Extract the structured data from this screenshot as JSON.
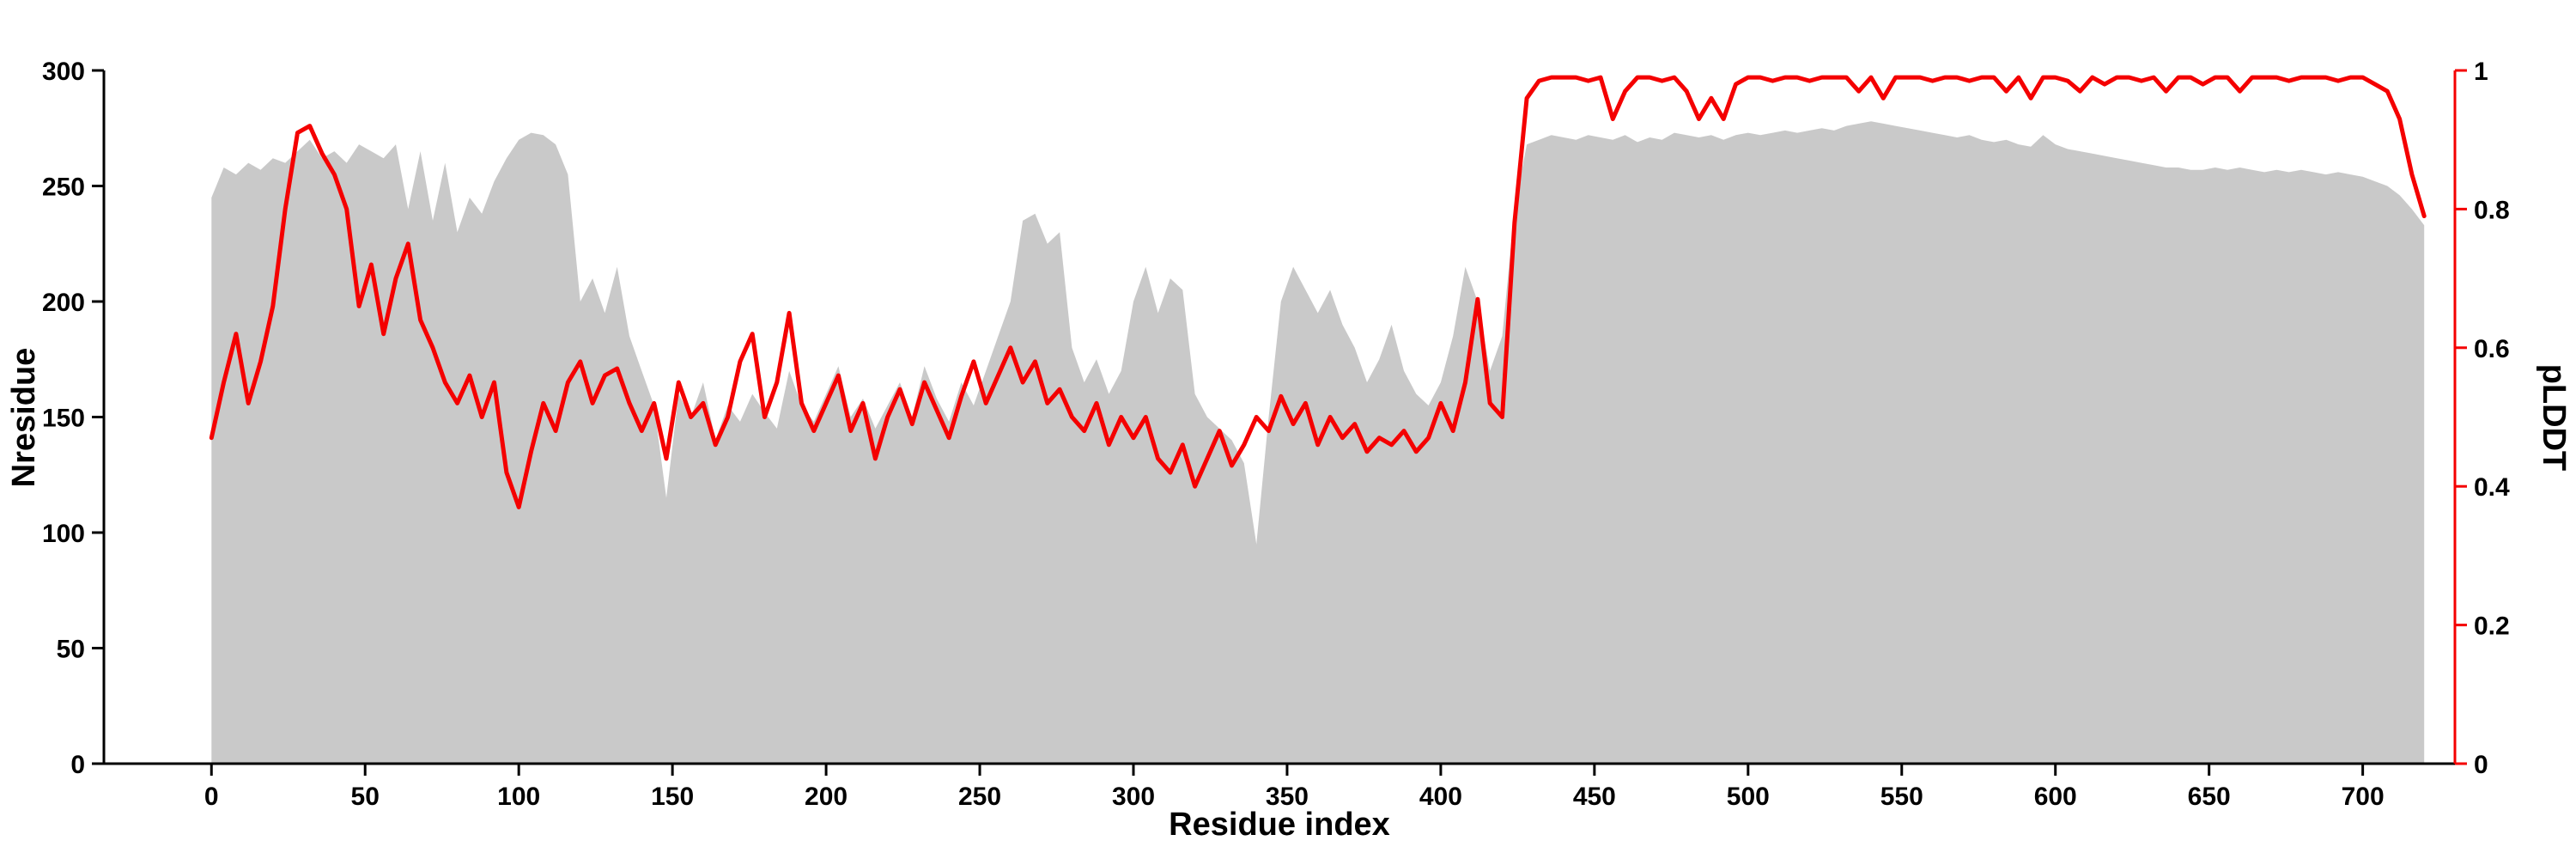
{
  "figure": {
    "background": "#ffffff"
  },
  "chart_data": {
    "type": "area+line",
    "title": "",
    "xlabel": "Residue index",
    "ylabel_left": "Nresidue",
    "ylabel_right": "pLDDT",
    "x_domain": [
      -35,
      730
    ],
    "y_left_domain": [
      0,
      300
    ],
    "y_right_domain": [
      0,
      1
    ],
    "x_ticks": [
      0,
      50,
      100,
      150,
      200,
      250,
      300,
      350,
      400,
      450,
      500,
      550,
      600,
      650,
      700
    ],
    "y_left_ticks": [
      0,
      50,
      100,
      150,
      200,
      250,
      300
    ],
    "y_right_ticks": [
      0,
      0.2,
      0.4,
      0.6,
      0.8,
      1
    ],
    "y_right_tick_labels": [
      "0",
      "0.2",
      "0.4",
      "0.6",
      "0.8",
      "1"
    ],
    "legend": "none",
    "grid": false,
    "colors": {
      "area": "#c9c9c9",
      "line": "#f40000",
      "axis": "#000000"
    },
    "x": [
      0,
      4,
      8,
      12,
      16,
      20,
      24,
      28,
      32,
      36,
      40,
      44,
      48,
      52,
      56,
      60,
      64,
      68,
      72,
      76,
      80,
      84,
      88,
      92,
      96,
      100,
      104,
      108,
      112,
      116,
      120,
      124,
      128,
      132,
      136,
      140,
      144,
      148,
      152,
      156,
      160,
      164,
      168,
      172,
      176,
      180,
      184,
      188,
      192,
      196,
      200,
      204,
      208,
      212,
      216,
      220,
      224,
      228,
      232,
      236,
      240,
      244,
      248,
      252,
      256,
      260,
      264,
      268,
      272,
      276,
      280,
      284,
      288,
      292,
      296,
      300,
      304,
      308,
      312,
      316,
      320,
      324,
      328,
      332,
      336,
      340,
      344,
      348,
      352,
      356,
      360,
      364,
      368,
      372,
      376,
      380,
      384,
      388,
      392,
      396,
      400,
      404,
      408,
      412,
      416,
      420,
      424,
      428,
      432,
      436,
      440,
      444,
      448,
      452,
      456,
      460,
      464,
      468,
      472,
      476,
      480,
      484,
      488,
      492,
      496,
      500,
      504,
      508,
      512,
      516,
      520,
      524,
      528,
      532,
      536,
      540,
      544,
      548,
      552,
      556,
      560,
      564,
      568,
      572,
      576,
      580,
      584,
      588,
      592,
      596,
      600,
      604,
      608,
      612,
      616,
      620,
      624,
      628,
      632,
      636,
      640,
      644,
      648,
      652,
      656,
      660,
      664,
      668,
      672,
      676,
      680,
      684,
      688,
      692,
      696,
      700,
      704,
      708,
      712,
      716,
      720
    ],
    "series": [
      {
        "name": "Nresidue",
        "axis": "left",
        "style": "area",
        "values": [
          245,
          258,
          255,
          260,
          257,
          262,
          260,
          265,
          270,
          262,
          265,
          260,
          268,
          265,
          262,
          268,
          240,
          265,
          235,
          260,
          230,
          245,
          238,
          252,
          262,
          270,
          273,
          272,
          268,
          255,
          200,
          210,
          195,
          215,
          185,
          170,
          155,
          115,
          160,
          150,
          165,
          140,
          155,
          148,
          160,
          152,
          145,
          170,
          155,
          148,
          160,
          172,
          150,
          158,
          145,
          155,
          165,
          150,
          172,
          158,
          148,
          165,
          155,
          170,
          185,
          200,
          235,
          238,
          225,
          230,
          180,
          165,
          175,
          160,
          170,
          200,
          215,
          195,
          210,
          205,
          160,
          150,
          145,
          140,
          130,
          95,
          150,
          200,
          215,
          205,
          195,
          205,
          190,
          180,
          165,
          175,
          190,
          170,
          160,
          155,
          165,
          185,
          215,
          200,
          170,
          185,
          240,
          268,
          270,
          272,
          271,
          270,
          272,
          271,
          270,
          272,
          269,
          271,
          270,
          273,
          272,
          271,
          272,
          270,
          272,
          273,
          272,
          273,
          274,
          273,
          274,
          275,
          274,
          276,
          277,
          278,
          277,
          276,
          275,
          274,
          273,
          272,
          271,
          272,
          270,
          269,
          270,
          268,
          267,
          272,
          268,
          266,
          265,
          264,
          263,
          262,
          261,
          260,
          259,
          258,
          258,
          257,
          257,
          258,
          257,
          258,
          257,
          256,
          257,
          256,
          257,
          256,
          255,
          256,
          255,
          254,
          252,
          250,
          246,
          240,
          233
        ]
      },
      {
        "name": "pLDDT",
        "axis": "right",
        "style": "line",
        "values": [
          0.47,
          0.55,
          0.62,
          0.52,
          0.58,
          0.66,
          0.8,
          0.91,
          0.92,
          0.88,
          0.85,
          0.8,
          0.66,
          0.72,
          0.62,
          0.7,
          0.75,
          0.64,
          0.6,
          0.55,
          0.52,
          0.56,
          0.5,
          0.55,
          0.42,
          0.37,
          0.45,
          0.52,
          0.48,
          0.55,
          0.58,
          0.52,
          0.56,
          0.57,
          0.52,
          0.48,
          0.52,
          0.44,
          0.55,
          0.5,
          0.52,
          0.46,
          0.5,
          0.58,
          0.62,
          0.5,
          0.55,
          0.65,
          0.52,
          0.48,
          0.52,
          0.56,
          0.48,
          0.52,
          0.44,
          0.5,
          0.54,
          0.49,
          0.55,
          0.51,
          0.47,
          0.53,
          0.58,
          0.52,
          0.56,
          0.6,
          0.55,
          0.58,
          0.52,
          0.54,
          0.5,
          0.48,
          0.52,
          0.46,
          0.5,
          0.47,
          0.5,
          0.44,
          0.42,
          0.46,
          0.4,
          0.44,
          0.48,
          0.43,
          0.46,
          0.5,
          0.48,
          0.53,
          0.49,
          0.52,
          0.46,
          0.5,
          0.47,
          0.49,
          0.45,
          0.47,
          0.46,
          0.48,
          0.45,
          0.47,
          0.52,
          0.48,
          0.55,
          0.67,
          0.52,
          0.5,
          0.78,
          0.96,
          0.985,
          0.99,
          0.99,
          0.99,
          0.985,
          0.99,
          0.93,
          0.97,
          0.99,
          0.99,
          0.985,
          0.99,
          0.97,
          0.93,
          0.96,
          0.93,
          0.98,
          0.99,
          0.99,
          0.985,
          0.99,
          0.99,
          0.985,
          0.99,
          0.99,
          0.99,
          0.97,
          0.99,
          0.96,
          0.99,
          0.99,
          0.99,
          0.985,
          0.99,
          0.99,
          0.985,
          0.99,
          0.99,
          0.97,
          0.99,
          0.96,
          0.99,
          0.99,
          0.985,
          0.97,
          0.99,
          0.98,
          0.99,
          0.99,
          0.985,
          0.99,
          0.97,
          0.99,
          0.99,
          0.98,
          0.99,
          0.99,
          0.97,
          0.99,
          0.99,
          0.99,
          0.985,
          0.99,
          0.99,
          0.99,
          0.985,
          0.99,
          0.99,
          0.98,
          0.97,
          0.93,
          0.85,
          0.79
        ]
      }
    ]
  }
}
